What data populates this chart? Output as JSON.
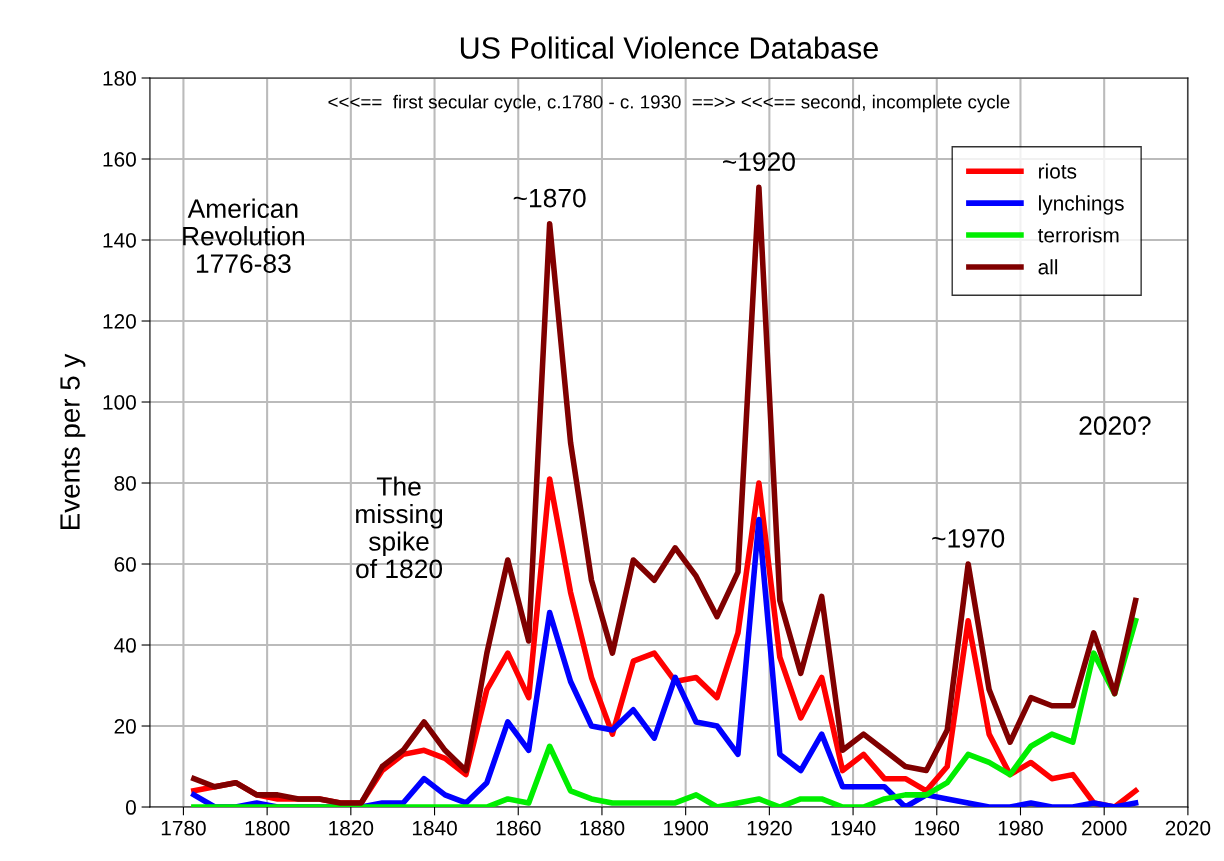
{
  "chart_data": {
    "type": "line",
    "title": "US Political Violence Database",
    "ylabel": "Events per 5 y",
    "x": [
      1782.5,
      1787.5,
      1792.5,
      1797.5,
      1802.5,
      1807.5,
      1812.5,
      1817.5,
      1822.5,
      1827.5,
      1832.5,
      1837.5,
      1842.5,
      1847.5,
      1852.5,
      1857.5,
      1862.5,
      1867.5,
      1872.5,
      1877.5,
      1882.5,
      1887.5,
      1892.5,
      1897.5,
      1902.5,
      1907.5,
      1912.5,
      1917.5,
      1922.5,
      1927.5,
      1932.5,
      1937.5,
      1942.5,
      1947.5,
      1952.5,
      1957.5,
      1962.5,
      1967.5,
      1972.5,
      1977.5,
      1982.5,
      1987.5,
      1992.5,
      1997.5,
      2002.5,
      2007.5
    ],
    "series": [
      {
        "name": "riots",
        "color": "#ff0000",
        "values": [
          4,
          5,
          6,
          3,
          2,
          2,
          2,
          1,
          1,
          9,
          13,
          14,
          12,
          8,
          29,
          38,
          27,
          81,
          53,
          32,
          18,
          36,
          38,
          31,
          32,
          27,
          43,
          80,
          37,
          22,
          32,
          9,
          13,
          7,
          7,
          4,
          10,
          46,
          18,
          8,
          11,
          7,
          8,
          1,
          0,
          4
        ]
      },
      {
        "name": "lynchings",
        "color": "#0000ff",
        "values": [
          3,
          0,
          0,
          1,
          0,
          0,
          0,
          0,
          0,
          1,
          1,
          7,
          3,
          1,
          6,
          21,
          14,
          48,
          31,
          20,
          19,
          24,
          17,
          32,
          21,
          20,
          13,
          71,
          13,
          9,
          18,
          5,
          5,
          5,
          0,
          3,
          2,
          1,
          0,
          0,
          1,
          0,
          0,
          1,
          0,
          1
        ]
      },
      {
        "name": "terrorism",
        "color": "#00ee00",
        "values": [
          0,
          0,
          0,
          0,
          0,
          0,
          0,
          0,
          0,
          0,
          0,
          0,
          0,
          0,
          0,
          2,
          1,
          15,
          4,
          2,
          1,
          1,
          1,
          1,
          3,
          0,
          1,
          2,
          0,
          2,
          2,
          0,
          0,
          2,
          3,
          3,
          6,
          13,
          11,
          8,
          15,
          18,
          16,
          38,
          28,
          46
        ]
      },
      {
        "name": "all",
        "color": "#800000",
        "values": [
          7,
          5,
          6,
          3,
          3,
          2,
          2,
          1,
          1,
          10,
          14,
          21,
          14,
          9,
          38,
          61,
          41,
          144,
          90,
          56,
          38,
          61,
          56,
          64,
          57,
          47,
          58,
          153,
          51,
          33,
          52,
          14,
          18,
          14,
          10,
          9,
          19,
          60,
          29,
          16,
          27,
          25,
          25,
          43,
          28,
          51
        ]
      }
    ],
    "xlim": [
      1772,
      2020
    ],
    "xticks": [
      1780,
      1800,
      1820,
      1840,
      1860,
      1880,
      1900,
      1920,
      1940,
      1960,
      1980,
      2000,
      2020
    ],
    "ylim": [
      0,
      180
    ],
    "yticks": [
      0,
      20,
      40,
      60,
      80,
      100,
      120,
      140,
      160,
      180
    ],
    "grid": true,
    "legend": "top right",
    "line_style": "solid",
    "marker": "none",
    "annotations": [
      "<<<==  first secular cycle, c.1780 - c. 1930  ==>> <<<== second, incomplete cycle",
      "American\nRevolution\n1776-83",
      "The\nmissing\nspike\nof 1820",
      {
        "text": "~1870",
        "x": 1867.5,
        "y": 144
      },
      {
        "text": "~1920",
        "x": 1917.5,
        "y": 153
      },
      {
        "text": "~1970",
        "x": 1967.5,
        "y": 60
      },
      "2020?"
    ]
  }
}
